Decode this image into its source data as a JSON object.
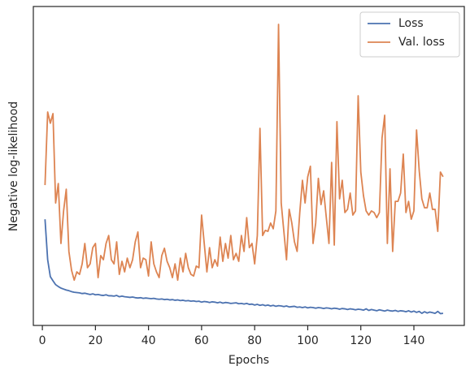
{
  "chart_data": {
    "type": "line",
    "xlabel": "Epochs",
    "ylabel": "Negative log-likelihood",
    "x": [
      1,
      2,
      3,
      4,
      5,
      6,
      7,
      8,
      9,
      10,
      11,
      12,
      13,
      14,
      15,
      16,
      17,
      18,
      19,
      20,
      21,
      22,
      23,
      24,
      25,
      26,
      27,
      28,
      29,
      30,
      31,
      32,
      33,
      34,
      35,
      36,
      37,
      38,
      39,
      40,
      41,
      42,
      43,
      44,
      45,
      46,
      47,
      48,
      49,
      50,
      51,
      52,
      53,
      54,
      55,
      56,
      57,
      58,
      59,
      60,
      61,
      62,
      63,
      64,
      65,
      66,
      67,
      68,
      69,
      70,
      71,
      72,
      73,
      74,
      75,
      76,
      77,
      78,
      79,
      80,
      81,
      82,
      83,
      84,
      85,
      86,
      87,
      88,
      89,
      90,
      91,
      92,
      93,
      94,
      95,
      96,
      97,
      98,
      99,
      100,
      101,
      102,
      103,
      104,
      105,
      106,
      107,
      108,
      109,
      110,
      111,
      112,
      113,
      114,
      115,
      116,
      117,
      118,
      119,
      120,
      121,
      122,
      123,
      124,
      125,
      126,
      127,
      128,
      129,
      130,
      131,
      132,
      133,
      134,
      135,
      136,
      137,
      138,
      139,
      140,
      141,
      142,
      143,
      144,
      145,
      146,
      147,
      148,
      149,
      150,
      151
    ],
    "series": [
      {
        "name": "Loss",
        "color": "#4c72b0",
        "values": [
          33.3,
          20.6,
          15.3,
          14.0,
          12.8,
          12.2,
          11.7,
          11.4,
          11.1,
          10.9,
          10.6,
          10.4,
          10.3,
          10.2,
          10.0,
          10.1,
          9.9,
          9.7,
          9.9,
          9.6,
          9.7,
          9.5,
          9.4,
          9.6,
          9.3,
          9.3,
          9.2,
          9.4,
          9.0,
          9.2,
          9.0,
          8.9,
          8.8,
          8.9,
          8.7,
          8.6,
          8.7,
          8.5,
          8.6,
          8.5,
          8.4,
          8.5,
          8.3,
          8.2,
          8.3,
          8.1,
          8.2,
          8.0,
          8.1,
          7.9,
          8.0,
          7.8,
          7.9,
          7.7,
          7.8,
          7.6,
          7.7,
          7.5,
          7.6,
          7.3,
          7.5,
          7.4,
          7.2,
          7.4,
          7.3,
          7.1,
          7.3,
          7.0,
          7.2,
          7.1,
          6.9,
          7.0,
          7.1,
          6.8,
          6.9,
          6.7,
          6.9,
          6.6,
          6.7,
          6.4,
          6.6,
          6.3,
          6.5,
          6.2,
          6.4,
          6.1,
          6.3,
          6.0,
          6.2,
          6.1,
          5.9,
          6.1,
          5.8,
          5.9,
          6.0,
          5.7,
          5.8,
          5.6,
          5.8,
          5.5,
          5.7,
          5.6,
          5.4,
          5.6,
          5.5,
          5.3,
          5.5,
          5.4,
          5.2,
          5.4,
          5.3,
          5.1,
          5.3,
          5.2,
          5.0,
          5.2,
          5.1,
          4.9,
          5.1,
          5.0,
          4.8,
          5.2,
          4.7,
          5.0,
          4.8,
          4.6,
          4.9,
          4.7,
          4.5,
          4.8,
          4.6,
          4.5,
          4.7,
          4.4,
          4.6,
          4.5,
          4.3,
          4.6,
          4.2,
          4.5,
          4.1,
          4.4,
          3.8,
          4.3,
          3.9,
          4.2,
          4.0,
          3.8,
          4.4,
          3.7,
          3.8
        ]
      },
      {
        "name": "Val. loss",
        "color": "#dd8452",
        "values": [
          44.0,
          66.9,
          63.4,
          66.4,
          38.4,
          44.5,
          25.7,
          35.9,
          42.7,
          23.2,
          17.3,
          14.2,
          16.8,
          16.0,
          19.3,
          25.7,
          18.1,
          19.3,
          24.4,
          25.7,
          15.0,
          21.9,
          20.6,
          25.7,
          28.2,
          20.6,
          19.3,
          26.2,
          16.0,
          20.1,
          16.8,
          21.1,
          18.1,
          20.6,
          26.2,
          29.3,
          18.1,
          21.1,
          20.6,
          15.5,
          26.2,
          19.3,
          16.8,
          15.0,
          21.9,
          24.2,
          20.1,
          18.1,
          15.0,
          19.3,
          14.2,
          21.1,
          16.8,
          22.6,
          18.1,
          16.0,
          15.5,
          18.6,
          18.1,
          34.6,
          25.7,
          16.8,
          24.4,
          18.1,
          20.6,
          18.6,
          27.7,
          20.1,
          25.7,
          21.1,
          28.2,
          20.6,
          22.6,
          20.1,
          28.2,
          23.2,
          33.8,
          24.4,
          25.7,
          19.3,
          28.2,
          61.8,
          28.2,
          29.8,
          29.5,
          32.1,
          30.3,
          35.9,
          94.4,
          38.4,
          29.5,
          20.6,
          36.4,
          32.1,
          26.2,
          23.2,
          35.4,
          45.5,
          38.4,
          46.6,
          49.9,
          25.7,
          32.1,
          46.1,
          37.9,
          42.2,
          33.8,
          25.7,
          51.1,
          25.2,
          63.9,
          39.7,
          45.5,
          35.4,
          36.4,
          41.5,
          34.6,
          35.9,
          72.0,
          48.1,
          40.7,
          35.9,
          34.6,
          35.9,
          35.4,
          33.8,
          35.4,
          58.8,
          65.9,
          25.7,
          49.1,
          23.2,
          38.9,
          38.9,
          41.5,
          53.7,
          35.4,
          38.9,
          33.3,
          35.9,
          61.3,
          48.6,
          39.7,
          36.9,
          36.9,
          41.5,
          36.4,
          36.4,
          29.5,
          48.1,
          46.6
        ]
      }
    ],
    "xlim": [
      -3.4,
      159
    ],
    "xticks": [
      0,
      20,
      40,
      60,
      80,
      100,
      120,
      140
    ],
    "ylim": [
      0,
      100
    ],
    "legend": "upper right"
  }
}
